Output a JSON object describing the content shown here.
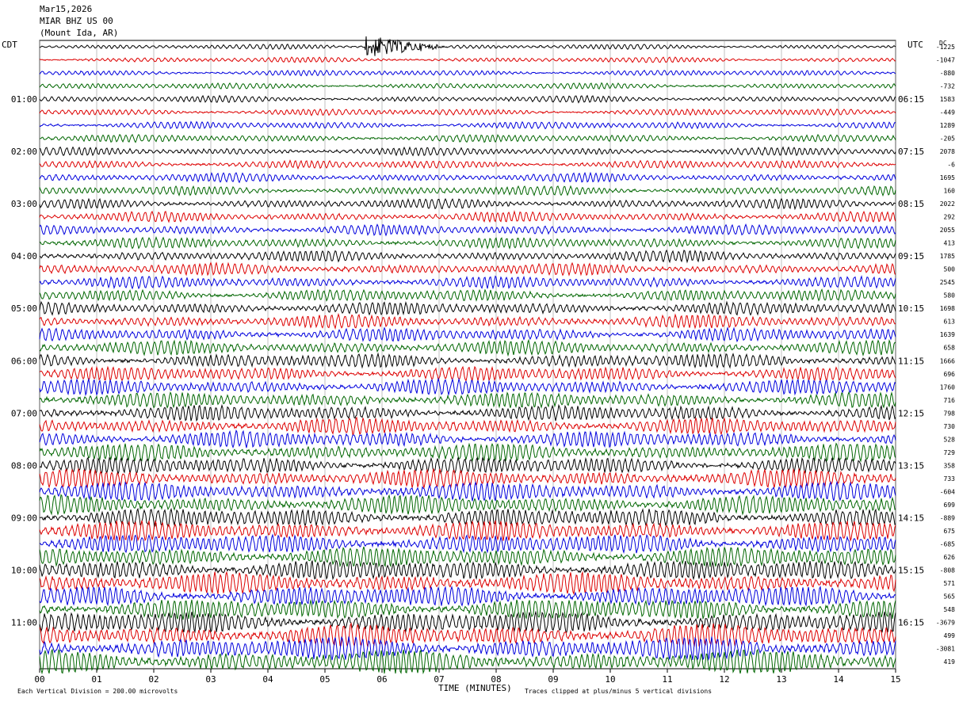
{
  "header": {
    "date": "Mar15,2026",
    "station": "MIAR BHZ US 00",
    "location": "(Mount Ida, AR)"
  },
  "left_timezone": "CDT",
  "right_timezone": "UTC",
  "dc_label": "DC",
  "x_axis_title": "TIME (MINUTES)",
  "footer_left": "Each Vertical Division =  200.00 microvolts",
  "footer_right": "Traces clipped at plus/minus 5 vertical divisions",
  "colors": {
    "trace_cycle": [
      "#000000",
      "#dd0000",
      "#0000dd",
      "#006600"
    ],
    "grid": "#999999"
  },
  "chart_data": {
    "type": "line",
    "title": "MIAR BHZ US 00",
    "xlabel": "TIME (MINUTES)",
    "xlim": [
      0,
      15
    ],
    "x_ticks": [
      "00",
      "01",
      "02",
      "03",
      "04",
      "05",
      "06",
      "07",
      "08",
      "09",
      "10",
      "11",
      "12",
      "13",
      "14",
      "15"
    ],
    "left_time_labels": [
      "01:00",
      "02:00",
      "03:00",
      "04:00",
      "05:00",
      "06:00",
      "07:00",
      "08:00",
      "09:00",
      "10:00",
      "11:00"
    ],
    "right_time_labels": [
      "06:15",
      "07:15",
      "08:15",
      "09:15",
      "10:15",
      "11:15",
      "12:15",
      "13:15",
      "14:15",
      "15:15",
      "16:15"
    ],
    "dc_offsets": [
      "-1225",
      "-1047",
      "-880",
      "-732",
      "1583",
      "-449",
      "1289",
      "-205",
      "2078",
      "-6",
      "1695",
      "160",
      "2022",
      "292",
      "2055",
      "413",
      "1785",
      "500",
      "2545",
      "580",
      "1698",
      "613",
      "1639",
      "658",
      "1666",
      "696",
      "1760",
      "716",
      "798",
      "730",
      "528",
      "729",
      "358",
      "733",
      "-604",
      "699",
      "-889",
      "675",
      "-685",
      "626",
      "-808",
      "571",
      "565",
      "548",
      "-3679",
      "499",
      "-3081",
      "419"
    ],
    "num_traces": 48,
    "minutes_per_trace": 15,
    "amplitude_trend": "increasing from top to bottom",
    "events": [
      {
        "trace": 1,
        "start_minute": 5.7,
        "end_minute": 6.4,
        "description": "clipped burst"
      }
    ]
  }
}
